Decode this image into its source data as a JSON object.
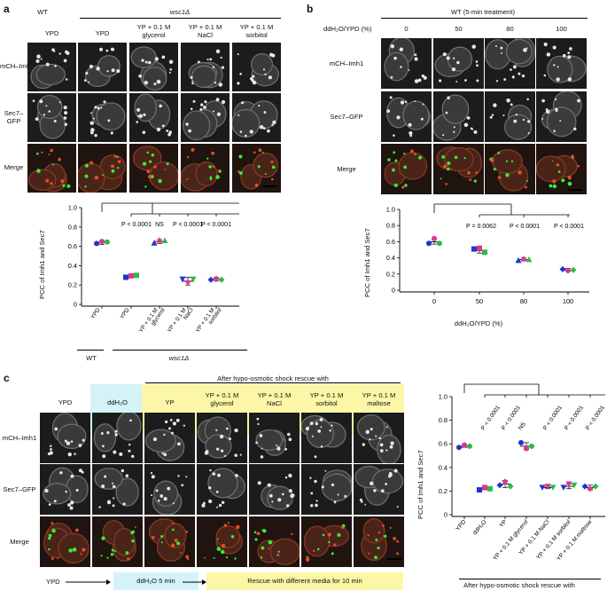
{
  "panel_a": {
    "letter": "a",
    "group_wt": "WT",
    "group_mutant": "wsc1Δ",
    "columns": [
      "YPD",
      "YPD",
      "YP + 0.1 M\nglycerol",
      "YP + 0.1 M\nNaCl",
      "YP + 0.1 M\nsorbitol"
    ],
    "rows": [
      "mCH–Imh1",
      "Sec7–\nGFP",
      "Merge"
    ],
    "chart_data": {
      "type": "scatter",
      "ylabel": "PCC of Imh1 and Sec7",
      "ylim": [
        0,
        1.0
      ],
      "yticks": [
        "0",
        "0.2",
        "0.4",
        "0.6",
        "0.8",
        "1.0"
      ],
      "categories": [
        "YPD",
        "YPD",
        "YP + 0.1 M\nglycerol",
        "YP + 0.1 M\nNaCl",
        "YP + 0.1 M\nsorbitol"
      ],
      "means": [
        0.64,
        0.29,
        0.65,
        0.24,
        0.26
      ],
      "sd": [
        0.02,
        0.01,
        0.02,
        0.04,
        0.02
      ],
      "points": [
        [
          0.63,
          0.65,
          0.645
        ],
        [
          0.28,
          0.295,
          0.3
        ],
        [
          0.635,
          0.665,
          0.66
        ],
        [
          0.26,
          0.22,
          0.26
        ],
        [
          0.255,
          0.265,
          0.255
        ]
      ],
      "pvalues": [
        "P < 0.0001",
        "NS",
        "P < 0.0001",
        "P < 0.0001"
      ],
      "xgroups": [
        "WT",
        "wsc1Δ"
      ]
    }
  },
  "panel_b": {
    "letter": "b",
    "title": "WT (5-min treatment)",
    "row_header": "ddH₂O/YPD  (%)",
    "columns": [
      "0",
      "50",
      "80",
      "100"
    ],
    "rows": [
      "mCH–Imh1",
      "Sec7–GFP",
      "Merge"
    ],
    "chart_data": {
      "type": "scatter",
      "ylabel": "PCC of Imh1 and Sec7",
      "xlabel": "ddH₂O/YPD (%)",
      "ylim": [
        0,
        1.0
      ],
      "yticks": [
        "0",
        "0.2",
        "0.4",
        "0.6",
        "0.8",
        "1.0"
      ],
      "categories": [
        "0",
        "50",
        "80",
        "100"
      ],
      "means": [
        0.6,
        0.49,
        0.38,
        0.25
      ],
      "sd": [
        0.03,
        0.03,
        0.02,
        0.02
      ],
      "points": [
        [
          0.58,
          0.64,
          0.58
        ],
        [
          0.51,
          0.52,
          0.47
        ],
        [
          0.37,
          0.39,
          0.38
        ],
        [
          0.26,
          0.24,
          0.25
        ]
      ],
      "pvalues": [
        "P = 0.0062",
        "P < 0.0001",
        "P < 0.0001"
      ]
    }
  },
  "panel_c": {
    "letter": "c",
    "banner": "After hypo-osmotic shock rescue with",
    "columns": [
      "YPD",
      "ddH₂O",
      "YP",
      "YP + 0.1 M\nglycerol",
      "YP + 0.1 M\nNaCl",
      "YP + 0.1 M\nsorbitol",
      "YP + 0.1 M\nmaltose"
    ],
    "rows": [
      "mCH–Imh1",
      "Sec7–GFP",
      "Merge"
    ],
    "timeline": [
      "YPD",
      "ddH₂O 5 min",
      "Rescue with different media for 10 min"
    ],
    "chart_data": {
      "type": "scatter",
      "ylabel": "PCC of Imh1 and Sec7",
      "ylim": [
        0,
        1.0
      ],
      "yticks": [
        "0",
        "0.2",
        "0.4",
        "0.6",
        "0.8",
        "1.0"
      ],
      "categories": [
        "YPD",
        "ddH₂O",
        "YP",
        "YP + 0.1 M glycerol",
        "YP + 0.1 M NaCl",
        "YP + 0.1 M sorbitol",
        "YP + 0.1 M maltose"
      ],
      "means": [
        0.58,
        0.22,
        0.26,
        0.58,
        0.23,
        0.24,
        0.23
      ],
      "sd": [
        0.01,
        0.01,
        0.03,
        0.03,
        0.01,
        0.02,
        0.02
      ],
      "points": [
        [
          0.57,
          0.59,
          0.58
        ],
        [
          0.21,
          0.23,
          0.22
        ],
        [
          0.25,
          0.28,
          0.24
        ],
        [
          0.61,
          0.56,
          0.58
        ],
        [
          0.23,
          0.24,
          0.23
        ],
        [
          0.23,
          0.26,
          0.25
        ],
        [
          0.24,
          0.22,
          0.24
        ]
      ],
      "pvalues": [
        "P < 0.0001",
        "P < 0.0001",
        "NS",
        "P < 0.0001",
        "P < 0.0001",
        "P < 0.0001"
      ],
      "xgroup": "After hypo-osmotic shock rescue with"
    }
  },
  "colors": {
    "replicate1": "#2233cc",
    "replicate2": "#e0358f",
    "replicate3": "#2eb84a",
    "highlight_cyan": "#d4f3f8",
    "highlight_yellow": "#fcf7a6"
  }
}
